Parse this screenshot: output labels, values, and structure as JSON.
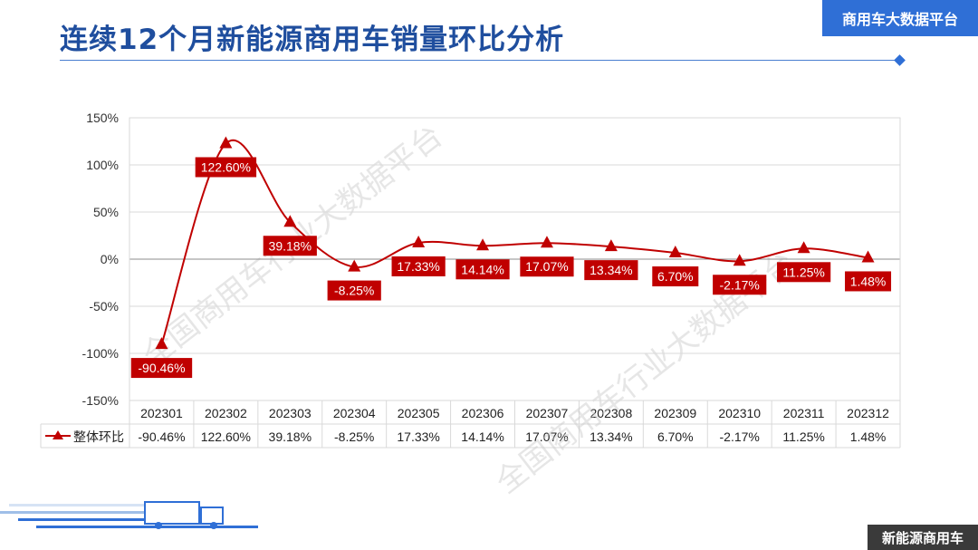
{
  "title": "连续12个月新能源商用车销量环比分析",
  "brand": "商用车大数据平台",
  "footer_label": "新能源商用车",
  "watermark": "全国商用车行业大数据平台",
  "colors": {
    "series": "#c00000",
    "accent": "#2f6fd6",
    "grid": "#d9d9d9"
  },
  "chart_data": {
    "type": "line",
    "categories": [
      "202301",
      "202302",
      "202303",
      "202304",
      "202305",
      "202306",
      "202307",
      "202308",
      "202309",
      "202310",
      "202311",
      "202312"
    ],
    "series": [
      {
        "name": "整体环比",
        "values": [
          -90.46,
          122.6,
          39.18,
          -8.25,
          17.33,
          14.14,
          17.07,
          13.34,
          6.7,
          -2.17,
          11.25,
          1.48
        ],
        "labels": [
          "-90.46%",
          "122.60%",
          "39.18%",
          "-8.25%",
          "17.33%",
          "14.14%",
          "17.07%",
          "13.34%",
          "6.70%",
          "-2.17%",
          "11.25%",
          "1.48%"
        ],
        "marker": "triangle",
        "smooth": true
      }
    ],
    "ylim": [
      -150,
      150
    ],
    "yticks": [
      150,
      100,
      50,
      0,
      -50,
      -100,
      -150
    ],
    "ytick_labels": [
      "150%",
      "100%",
      "50%",
      "0%",
      "-50%",
      "-100%",
      "-150%"
    ],
    "grid": true,
    "data_table": true
  }
}
